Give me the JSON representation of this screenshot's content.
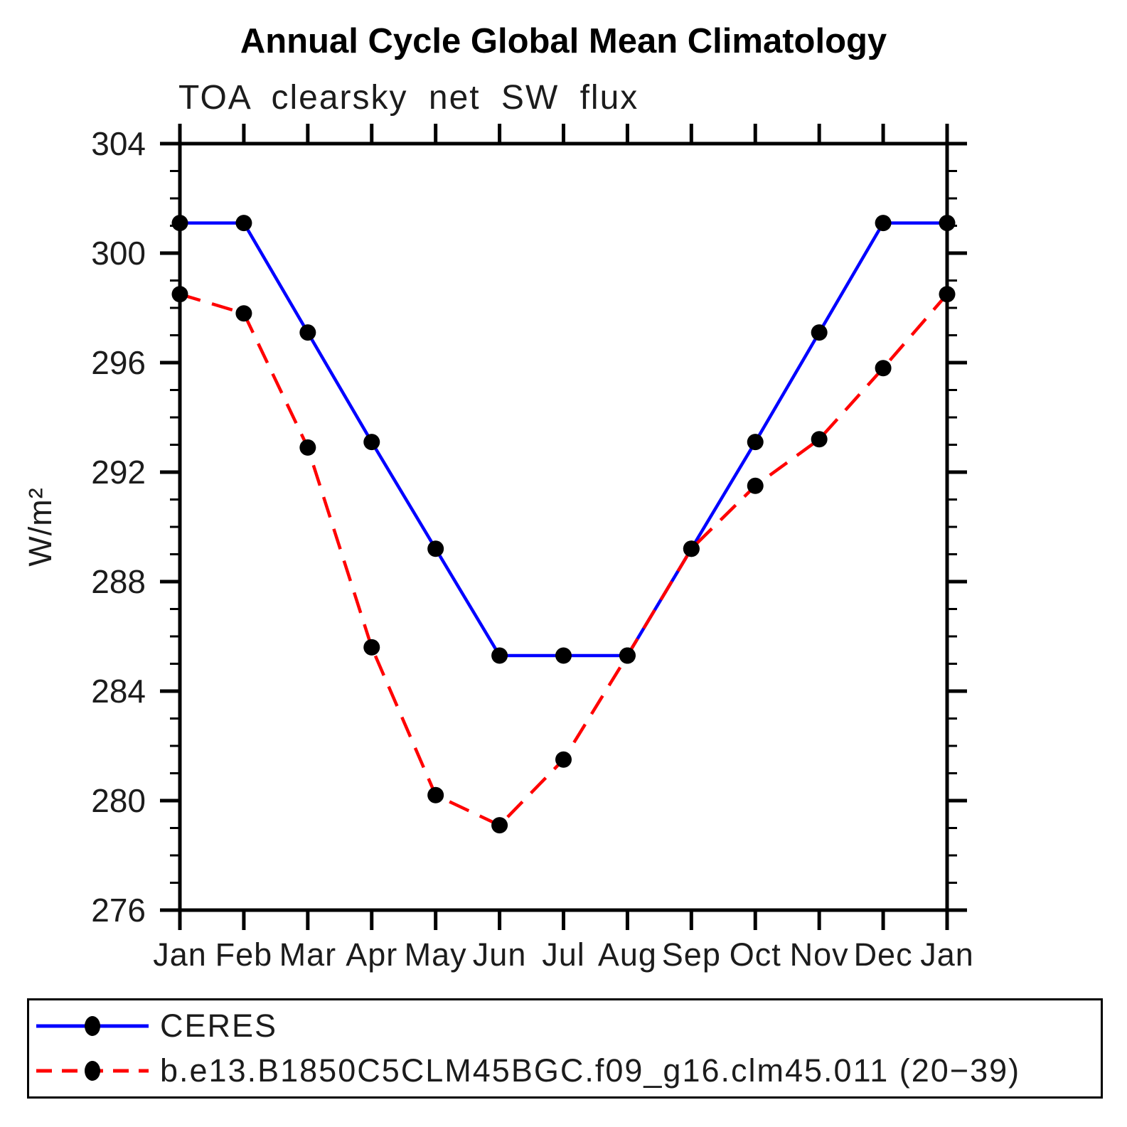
{
  "page": {
    "background": "#ffffff"
  },
  "chart_data": {
    "type": "line",
    "title": "Annual Cycle Global Mean Climatology",
    "subtitle": "TOA clearsky net SW flux",
    "ylabel": "W/m²",
    "xlabel": "",
    "x_tick_labels": [
      "Jan",
      "Feb",
      "Mar",
      "Apr",
      "May",
      "Jun",
      "Jul",
      "Aug",
      "Sep",
      "Oct",
      "Nov",
      "Dec",
      "Jan"
    ],
    "ylim": [
      276,
      304
    ],
    "y_major_ticks": [
      276,
      280,
      284,
      288,
      292,
      296,
      300,
      304
    ],
    "y_minor_step": 1,
    "grid": "off",
    "legend_position": "bottom-left-box",
    "axis_color": "#000000",
    "marker_color": "#000000",
    "series": [
      {
        "name": "CERES",
        "color": "#0000ff",
        "style": "solid",
        "marker": "circle",
        "values": [
          301.1,
          301.1,
          297.1,
          293.1,
          289.2,
          285.3,
          285.3,
          285.3,
          289.2,
          293.1,
          297.1,
          301.1,
          301.1
        ]
      },
      {
        "name": "b.e13.B1850C5CLM45BGC.f09_g16.clm45.011 (20−39)",
        "color": "#ff0000",
        "style": "dashed",
        "marker": "circle",
        "values": [
          298.5,
          297.8,
          292.9,
          285.6,
          280.2,
          279.1,
          281.5,
          285.3,
          289.2,
          291.5,
          293.2,
          295.8,
          298.5
        ]
      }
    ]
  }
}
